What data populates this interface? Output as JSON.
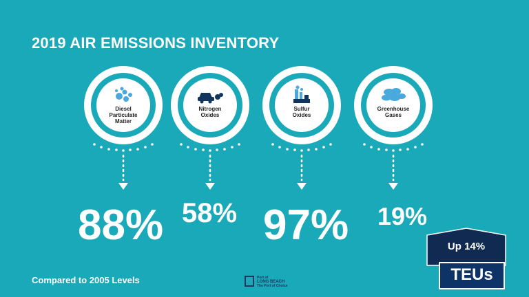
{
  "title": "2019 AIR EMISSIONS INVENTORY",
  "pollutants": [
    {
      "label_lines": [
        "Diesel",
        "Particulate",
        "Matter"
      ],
      "icon": "particles-icon",
      "value": "88%"
    },
    {
      "label_lines": [
        "Nitrogen",
        "Oxides"
      ],
      "icon": "car-exhaust-icon",
      "value": "58%"
    },
    {
      "label_lines": [
        "Sulfur",
        "Oxides"
      ],
      "icon": "factory-icon",
      "value": "97%"
    },
    {
      "label_lines": [
        "Greenhouse",
        "Gases"
      ],
      "icon": "clouds-icon",
      "value": "19%"
    }
  ],
  "footer": "Compared to 2005 Levels",
  "logo": {
    "line1": "Port of",
    "line2": "LONG BEACH",
    "line3": "The Port of Choice"
  },
  "teu": {
    "change": "Up 14%",
    "label": "TEUs"
  },
  "colors": {
    "background": "#1aa9b9",
    "navy": "#102a52",
    "teu_box": "#0e3366"
  }
}
